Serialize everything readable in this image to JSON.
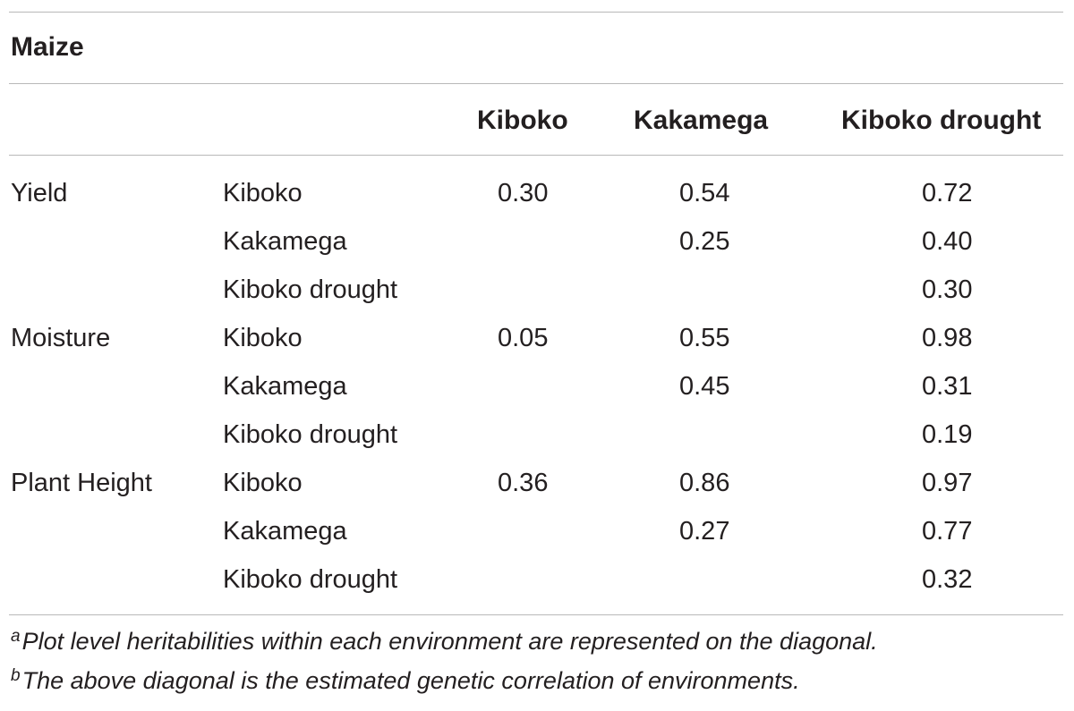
{
  "table": {
    "caption": "Maize",
    "column_headers": [
      "Kiboko",
      "Kakamega",
      "Kiboko drought"
    ],
    "rows": [
      {
        "trait": "Yield",
        "environment": "Kiboko",
        "kiboko": "0.30",
        "kakamega": "0.54",
        "kiboko_drought": "0.72"
      },
      {
        "trait": "",
        "environment": "Kakamega",
        "kiboko": "",
        "kakamega": "0.25",
        "kiboko_drought": "0.40"
      },
      {
        "trait": "",
        "environment": "Kiboko drought",
        "kiboko": "",
        "kakamega": "",
        "kiboko_drought": "0.30"
      },
      {
        "trait": "Moisture",
        "environment": "Kiboko",
        "kiboko": "0.05",
        "kakamega": "0.55",
        "kiboko_drought": "0.98"
      },
      {
        "trait": "",
        "environment": "Kakamega",
        "kiboko": "",
        "kakamega": "0.45",
        "kiboko_drought": "0.31"
      },
      {
        "trait": "",
        "environment": "Kiboko drought",
        "kiboko": "",
        "kakamega": "",
        "kiboko_drought": "0.19"
      },
      {
        "trait": "Plant Height",
        "environment": "Kiboko",
        "kiboko": "0.36",
        "kakamega": "0.86",
        "kiboko_drought": "0.97"
      },
      {
        "trait": "",
        "environment": "Kakamega",
        "kiboko": "",
        "kakamega": "0.27",
        "kiboko_drought": "0.77"
      },
      {
        "trait": "",
        "environment": "Kiboko drought",
        "kiboko": "",
        "kakamega": "",
        "kiboko_drought": "0.32"
      }
    ]
  },
  "footnotes": [
    {
      "marker": "a",
      "text": "Plot level heritabilities within each environment are represented on the diagonal."
    },
    {
      "marker": "b",
      "text": "The above diagonal is the estimated genetic correlation of environments."
    }
  ]
}
